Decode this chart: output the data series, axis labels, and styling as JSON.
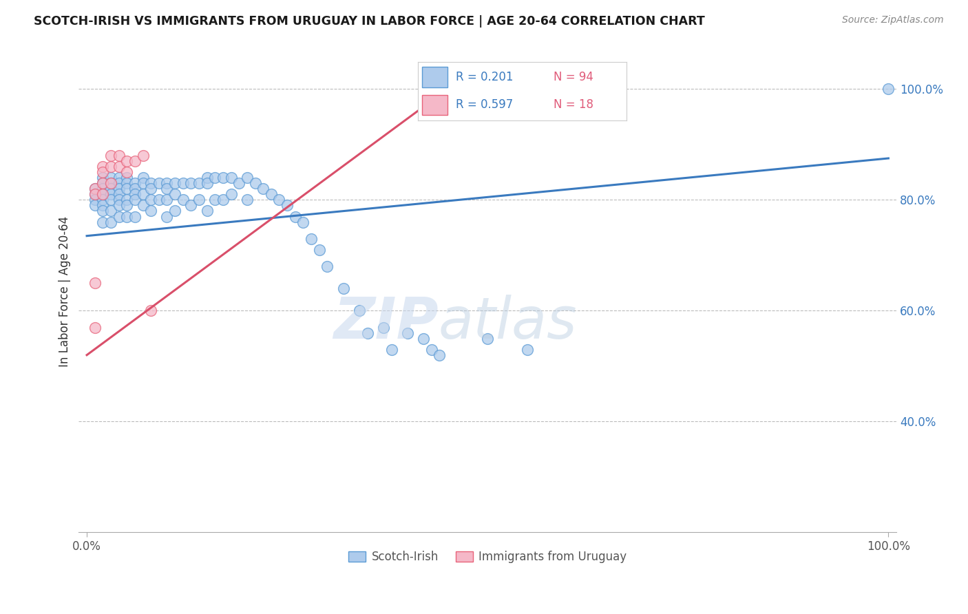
{
  "title": "SCOTCH-IRISH VS IMMIGRANTS FROM URUGUAY IN LABOR FORCE | AGE 20-64 CORRELATION CHART",
  "source": "Source: ZipAtlas.com",
  "ylabel": "In Labor Force | Age 20-64",
  "legend_blue_label": "Scotch-Irish",
  "legend_pink_label": "Immigrants from Uruguay",
  "R_blue": 0.201,
  "N_blue": 94,
  "R_pink": 0.597,
  "N_pink": 18,
  "blue_color": "#aecbec",
  "pink_color": "#f5b8c8",
  "blue_edge_color": "#5b9bd5",
  "pink_edge_color": "#e8637a",
  "blue_line_color": "#3a7abf",
  "pink_line_color": "#d94f6a",
  "watermark_zip_color": "#d0dff0",
  "watermark_atlas_color": "#c8d8e8",
  "blue_scatter_x": [
    0.01,
    0.01,
    0.01,
    0.01,
    0.02,
    0.02,
    0.02,
    0.02,
    0.02,
    0.02,
    0.02,
    0.02,
    0.03,
    0.03,
    0.03,
    0.03,
    0.03,
    0.03,
    0.03,
    0.04,
    0.04,
    0.04,
    0.04,
    0.04,
    0.04,
    0.04,
    0.05,
    0.05,
    0.05,
    0.05,
    0.05,
    0.05,
    0.06,
    0.06,
    0.06,
    0.06,
    0.06,
    0.07,
    0.07,
    0.07,
    0.07,
    0.08,
    0.08,
    0.08,
    0.08,
    0.09,
    0.09,
    0.1,
    0.1,
    0.1,
    0.1,
    0.11,
    0.11,
    0.11,
    0.12,
    0.12,
    0.13,
    0.13,
    0.14,
    0.14,
    0.15,
    0.15,
    0.15,
    0.16,
    0.16,
    0.17,
    0.17,
    0.18,
    0.18,
    0.19,
    0.2,
    0.2,
    0.21,
    0.22,
    0.23,
    0.24,
    0.25,
    0.26,
    0.27,
    0.28,
    0.29,
    0.3,
    0.32,
    0.34,
    0.35,
    0.37,
    0.38,
    0.4,
    0.42,
    0.43,
    0.44,
    0.5,
    0.55,
    1.0
  ],
  "blue_scatter_y": [
    0.82,
    0.81,
    0.8,
    0.79,
    0.84,
    0.83,
    0.82,
    0.81,
    0.8,
    0.79,
    0.78,
    0.76,
    0.84,
    0.83,
    0.82,
    0.81,
    0.8,
    0.78,
    0.76,
    0.84,
    0.83,
    0.82,
    0.81,
    0.8,
    0.79,
    0.77,
    0.84,
    0.83,
    0.82,
    0.8,
    0.79,
    0.77,
    0.83,
    0.82,
    0.81,
    0.8,
    0.77,
    0.84,
    0.83,
    0.81,
    0.79,
    0.83,
    0.82,
    0.8,
    0.78,
    0.83,
    0.8,
    0.83,
    0.82,
    0.8,
    0.77,
    0.83,
    0.81,
    0.78,
    0.83,
    0.8,
    0.83,
    0.79,
    0.83,
    0.8,
    0.84,
    0.83,
    0.78,
    0.84,
    0.8,
    0.84,
    0.8,
    0.84,
    0.81,
    0.83,
    0.84,
    0.8,
    0.83,
    0.82,
    0.81,
    0.8,
    0.79,
    0.77,
    0.76,
    0.73,
    0.71,
    0.68,
    0.64,
    0.6,
    0.56,
    0.57,
    0.53,
    0.56,
    0.55,
    0.53,
    0.52,
    0.55,
    0.53,
    1.0
  ],
  "pink_scatter_x": [
    0.01,
    0.01,
    0.01,
    0.01,
    0.02,
    0.02,
    0.02,
    0.02,
    0.03,
    0.03,
    0.03,
    0.04,
    0.04,
    0.05,
    0.05,
    0.06,
    0.07,
    0.08
  ],
  "pink_scatter_y": [
    0.82,
    0.81,
    0.65,
    0.57,
    0.86,
    0.85,
    0.83,
    0.81,
    0.88,
    0.86,
    0.83,
    0.88,
    0.86,
    0.87,
    0.85,
    0.87,
    0.88,
    0.6
  ]
}
